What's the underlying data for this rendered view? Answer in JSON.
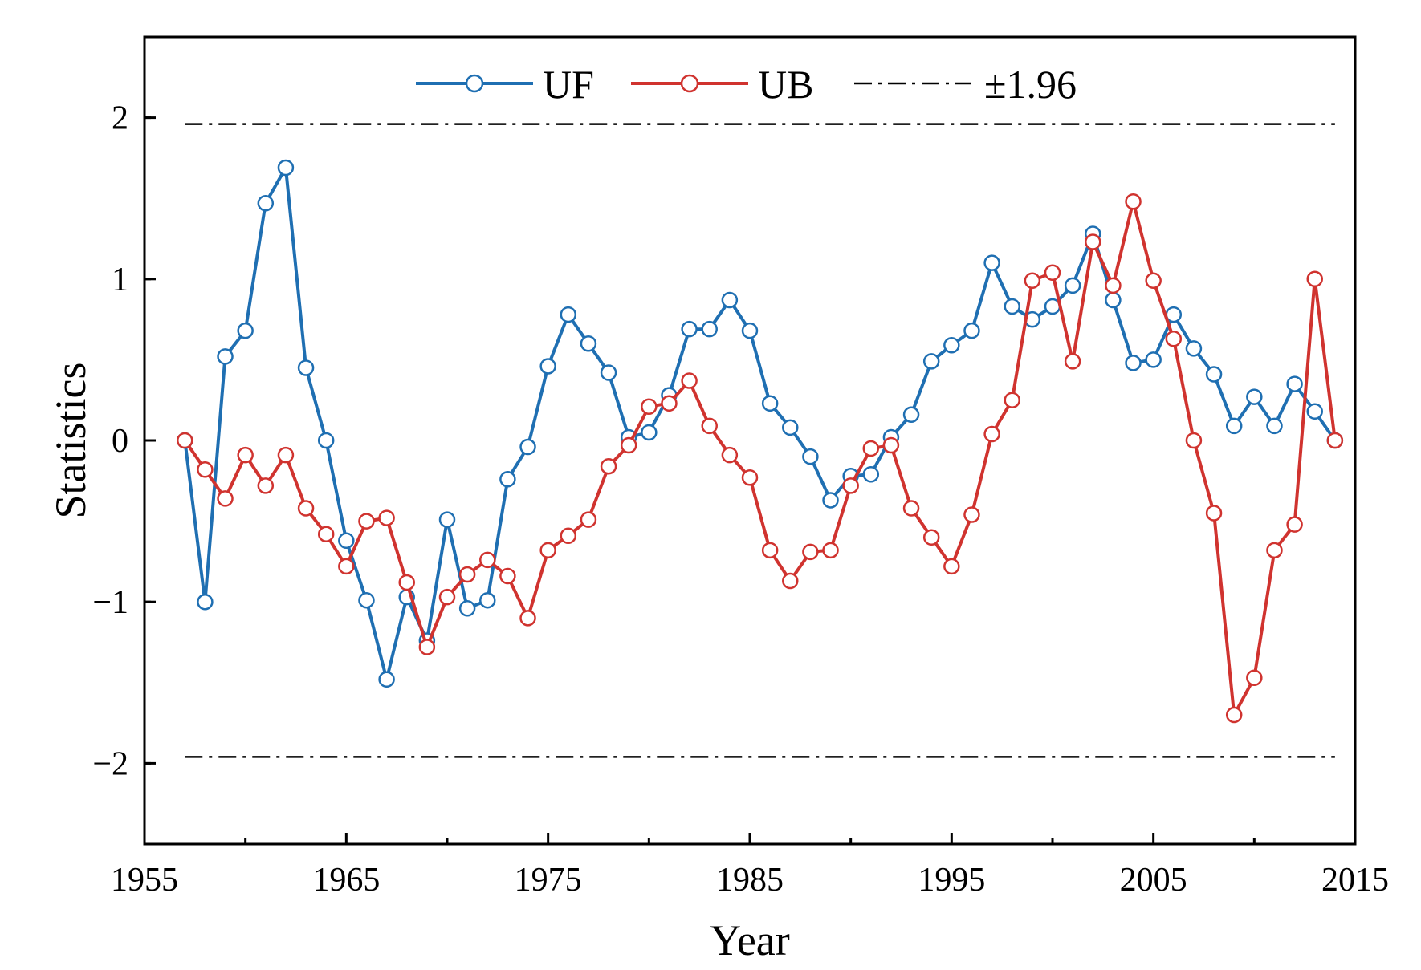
{
  "chart_data": {
    "type": "line",
    "xlabel": "Year",
    "ylabel": "Statistics",
    "xlim": [
      1955,
      2015
    ],
    "ylim": [
      -2.5,
      2.5
    ],
    "x_ticks": [
      1955,
      1965,
      1975,
      1985,
      1995,
      2005,
      2015
    ],
    "x_tick_labels": [
      "1955",
      "1965",
      "1975",
      "1985",
      "1995",
      "2005",
      "2015"
    ],
    "y_ticks": [
      -2,
      -1,
      0,
      1,
      2
    ],
    "y_tick_labels": [
      "−2",
      "−1",
      "0",
      "1",
      "2"
    ],
    "x": [
      1957,
      1958,
      1959,
      1960,
      1961,
      1962,
      1963,
      1964,
      1965,
      1966,
      1967,
      1968,
      1969,
      1970,
      1971,
      1972,
      1973,
      1974,
      1975,
      1976,
      1977,
      1978,
      1979,
      1980,
      1981,
      1982,
      1983,
      1984,
      1985,
      1986,
      1987,
      1988,
      1989,
      1990,
      1991,
      1992,
      1993,
      1994,
      1995,
      1996,
      1997,
      1998,
      1999,
      2000,
      2001,
      2002,
      2003,
      2004,
      2005,
      2006,
      2007,
      2008,
      2009,
      2010,
      2011,
      2012,
      2013,
      2014
    ],
    "series": [
      {
        "name": "UF",
        "color": "#1f6fb2",
        "values": [
          0.0,
          -1.0,
          0.52,
          0.68,
          1.47,
          1.69,
          0.45,
          0.0,
          -0.62,
          -0.99,
          -1.48,
          -0.97,
          -1.24,
          -0.49,
          -1.04,
          -0.99,
          -0.24,
          -0.04,
          0.46,
          0.78,
          0.6,
          0.42,
          0.02,
          0.05,
          0.28,
          0.69,
          0.69,
          0.87,
          0.68,
          0.23,
          0.08,
          -0.1,
          -0.37,
          -0.22,
          -0.21,
          0.02,
          0.16,
          0.49,
          0.59,
          0.68,
          1.1,
          0.83,
          0.75,
          0.83,
          0.96,
          1.28,
          0.87,
          0.48,
          0.5,
          0.78,
          0.57,
          0.41,
          0.09,
          0.27,
          0.09,
          0.35,
          0.18,
          0.0
        ]
      },
      {
        "name": "UB",
        "color": "#d0332f",
        "values": [
          0.0,
          -0.18,
          -0.36,
          -0.09,
          -0.28,
          -0.09,
          -0.42,
          -0.58,
          -0.78,
          -0.5,
          -0.48,
          -0.88,
          -1.28,
          -0.97,
          -0.83,
          -0.74,
          -0.84,
          -1.1,
          -0.68,
          -0.59,
          -0.49,
          -0.16,
          -0.03,
          0.21,
          0.23,
          0.37,
          0.09,
          -0.09,
          -0.23,
          -0.68,
          -0.87,
          -0.69,
          -0.68,
          -0.28,
          -0.05,
          -0.03,
          -0.42,
          -0.6,
          -0.78,
          -0.46,
          0.04,
          0.25,
          0.99,
          1.04,
          0.49,
          1.23,
          0.96,
          1.48,
          0.99,
          0.63,
          0.0,
          -0.45,
          -1.7,
          -1.47,
          -0.68,
          -0.52,
          1.0,
          0.0
        ]
      }
    ],
    "reference_lines": {
      "name": "±1.96",
      "values": [
        1.96,
        -1.96
      ],
      "style": "dash-dot",
      "color": "#000000"
    },
    "legend": {
      "position": "top-center",
      "entries": [
        {
          "label": "UF",
          "color": "#1f6fb2",
          "kind": "line-marker"
        },
        {
          "label": "UB",
          "color": "#d0332f",
          "kind": "line-marker"
        },
        {
          "label": "±1.96",
          "color": "#000000",
          "kind": "dash-dot"
        }
      ]
    }
  }
}
